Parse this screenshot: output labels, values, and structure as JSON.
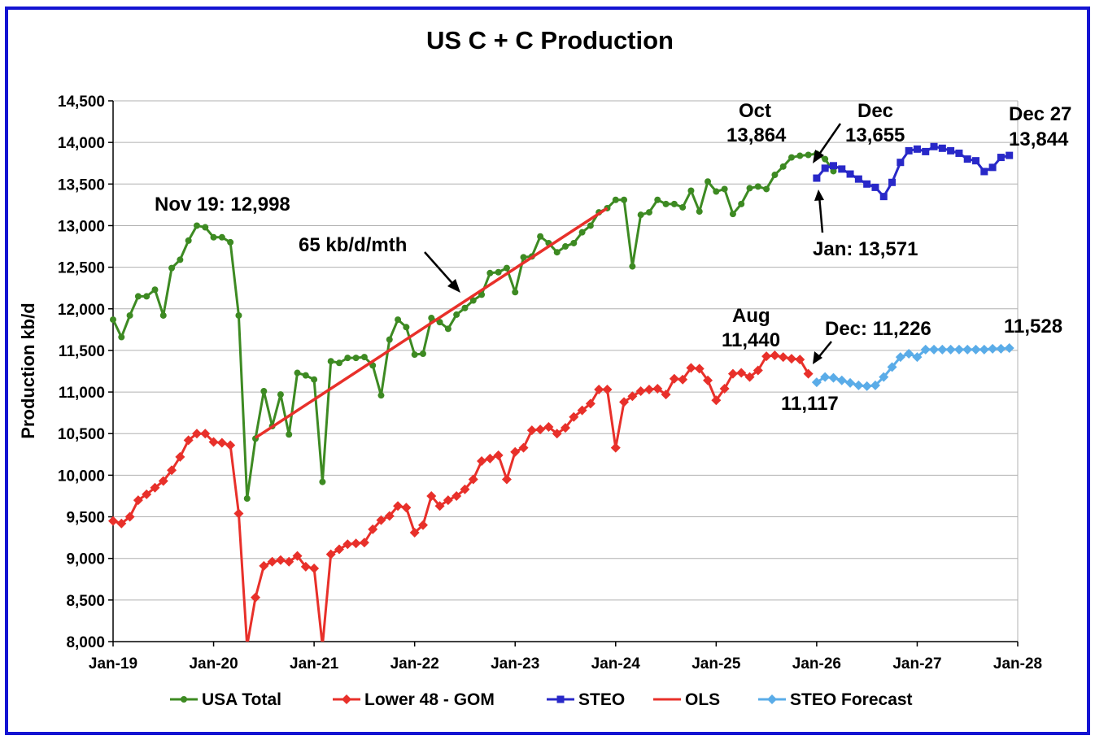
{
  "chart_data": {
    "type": "line",
    "title": "US C + C Production",
    "xlabel": "",
    "ylabel": "Production kb/d",
    "ylim": [
      8000,
      14500
    ],
    "xlim": [
      "Jan-19",
      "Jan-28"
    ],
    "x_ticks": [
      "Jan-19",
      "Jan-20",
      "Jan-21",
      "Jan-22",
      "Jan-23",
      "Jan-24",
      "Jan-25",
      "Jan-26",
      "Jan-27",
      "Jan-28"
    ],
    "y_ticks": [
      "8,000",
      "8,500",
      "9,000",
      "9,500",
      "10,000",
      "10,500",
      "11,000",
      "11,500",
      "12,000",
      "12,500",
      "13,000",
      "13,500",
      "14,000",
      "14,500"
    ],
    "grid": "horizontal",
    "legend_position": "bottom",
    "colors": {
      "usa_total": "#3d8a22",
      "lower48": "#e8302a",
      "steo": "#2828c8",
      "ols": "#e8302a",
      "steo_forecast": "#5aace8",
      "frame": "#1414d2",
      "grid": "#b0b0b0"
    },
    "series": [
      {
        "name": "USA Total",
        "marker": "circle",
        "start": "Jan-19",
        "values": [
          11870,
          11660,
          11920,
          12150,
          12150,
          12230,
          11920,
          12490,
          12590,
          12820,
          13000,
          12980,
          12860,
          12860,
          12800,
          11920,
          9720,
          10440,
          11010,
          10590,
          10970,
          10490,
          11230,
          11200,
          11150,
          9920,
          11370,
          11350,
          11410,
          11410,
          11420,
          11320,
          10960,
          11630,
          11870,
          11780,
          11450,
          11460,
          11890,
          11840,
          11760,
          11930,
          12010,
          12100,
          12170,
          12430,
          12440,
          12490,
          12200,
          12620,
          12630,
          12870,
          12790,
          12680,
          12750,
          12790,
          12920,
          13000,
          13160,
          13210,
          13310,
          13310,
          12510,
          13130,
          13160,
          13310,
          13260,
          13260,
          13220,
          13420,
          13170,
          13530,
          13410,
          13440,
          13140,
          13260,
          13450,
          13470,
          13440,
          13610,
          13710,
          13820,
          13840,
          13850,
          13864,
          13800,
          13655
        ]
      },
      {
        "name": "Lower 48 - GOM",
        "marker": "diamond",
        "start": "Jan-19",
        "values": [
          9450,
          9420,
          9500,
          9700,
          9770,
          9850,
          9930,
          10060,
          10220,
          10420,
          10500,
          10500,
          10400,
          10390,
          10360,
          9540,
          7950,
          8530,
          8910,
          8960,
          8980,
          8960,
          9030,
          8900,
          8880,
          7950,
          9050,
          9110,
          9170,
          9180,
          9190,
          9350,
          9460,
          9510,
          9630,
          9610,
          9310,
          9400,
          9750,
          9630,
          9700,
          9750,
          9830,
          9950,
          10170,
          10200,
          10240,
          9950,
          10280,
          10330,
          10540,
          10550,
          10580,
          10500,
          10570,
          10700,
          10780,
          10860,
          11030,
          11030,
          10330,
          10880,
          10950,
          11010,
          11030,
          11040,
          10970,
          11160,
          11150,
          11290,
          11280,
          11140,
          10900,
          11040,
          11220,
          11230,
          11180,
          11260,
          11430,
          11440,
          11420,
          11400,
          11390,
          11220
        ]
      },
      {
        "name": "STEO",
        "marker": "square",
        "start": "Jan-26",
        "values": [
          13571,
          13690,
          13720,
          13680,
          13620,
          13560,
          13500,
          13460,
          13350,
          13520,
          13760,
          13900,
          13920,
          13890,
          13950,
          13930,
          13900,
          13870,
          13800,
          13780,
          13650,
          13700,
          13820,
          13844
        ]
      },
      {
        "name": "OLS",
        "marker": "none",
        "start": "Jun-20",
        "end": "Dec-23",
        "endpoints": [
          10450,
          13210
        ]
      },
      {
        "name": "STEO Forecast",
        "marker": "diamond",
        "start": "Jan-26",
        "values": [
          11117,
          11180,
          11170,
          11140,
          11110,
          11080,
          11070,
          11080,
          11180,
          11300,
          11420,
          11460,
          11420,
          11510,
          11510,
          11510,
          11510,
          11510,
          11510,
          11510,
          11510,
          11520,
          11520,
          11528
        ]
      }
    ],
    "annotations": {
      "nov19": "Nov 19: 12,998",
      "slope": "65 kb/d/mth",
      "oct_month": "Oct",
      "oct_value": "13,864",
      "dec_month": "Dec",
      "dec_value": "13,655",
      "dec27_month": "Dec 27",
      "dec27_value": "13,844",
      "jan": "Jan: 13,571",
      "aug_month": "Aug",
      "aug_value": "11,440",
      "dec_l48": "Dec: 11,226",
      "steo_start": "11,117",
      "steo_end": "11,528"
    }
  }
}
